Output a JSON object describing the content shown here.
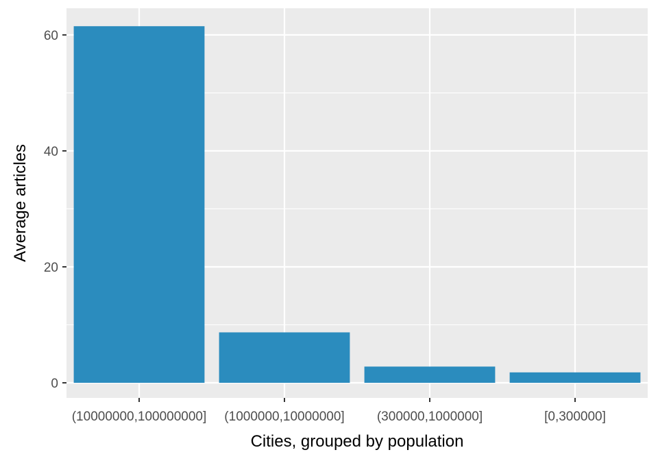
{
  "chart_data": {
    "type": "bar",
    "title": "",
    "xlabel": "Cities, grouped by population",
    "ylabel": "Average articles",
    "categories": [
      "(10000000,100000000]",
      "(1000000,10000000]",
      "(300000,1000000]",
      "[0,300000]"
    ],
    "values": [
      61.5,
      8.7,
      2.8,
      1.8
    ],
    "ylim": [
      -2.6,
      64.6
    ],
    "yticks": [
      0,
      20,
      40,
      60
    ],
    "bar_color": "#2b8cbe",
    "panel_color": "#ebebeb",
    "grid": true,
    "legend": "none"
  }
}
